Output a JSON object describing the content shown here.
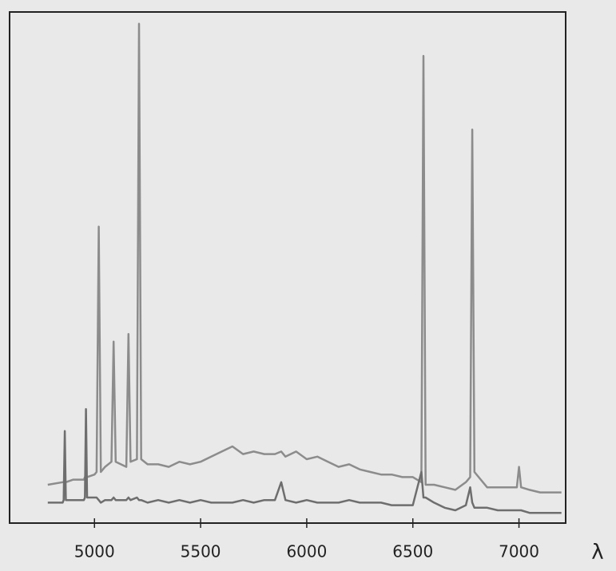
{
  "chart_data": {
    "type": "line",
    "x_label": "λ",
    "x": [
      4780,
      4850,
      4855,
      4860,
      4865,
      4900,
      4950,
      4955,
      4960,
      4965,
      5000,
      5010,
      5020,
      5030,
      5050,
      5080,
      5090,
      5100,
      5150,
      5160,
      5170,
      5200,
      5210,
      5220,
      5250,
      5300,
      5350,
      5400,
      5450,
      5500,
      5550,
      5600,
      5650,
      5700,
      5750,
      5800,
      5850,
      5880,
      5900,
      5950,
      6000,
      6050,
      6100,
      6150,
      6200,
      6250,
      6300,
      6350,
      6400,
      6450,
      6500,
      6540,
      6550,
      6560,
      6600,
      6650,
      6700,
      6750,
      6770,
      6780,
      6790,
      6850,
      6900,
      6950,
      6990,
      7000,
      7010,
      7050,
      7100,
      7150,
      7200
    ],
    "series": [
      {
        "color": "#8c8c8c",
        "values": [
          7.5,
          8,
          8,
          8,
          8,
          8.5,
          8.5,
          9,
          9,
          9,
          9.5,
          10,
          58,
          10,
          11,
          12,
          35.5,
          12,
          11,
          37,
          12,
          12.5,
          97.7,
          12.5,
          11.5,
          11.5,
          11,
          12,
          11.5,
          12,
          13,
          14,
          15,
          13.5,
          14,
          13.5,
          13.5,
          14,
          13,
          14,
          12.5,
          13,
          12,
          11,
          11.5,
          10.5,
          10,
          9.5,
          9.5,
          9,
          9,
          8,
          91.4,
          7.5,
          7.5,
          7,
          6.5,
          8,
          9,
          77,
          10,
          7,
          7,
          7,
          7,
          11,
          7,
          6.5,
          6,
          6,
          6
        ]
      },
      {
        "color": "#6e6e6e",
        "values": [
          4,
          4,
          4.5,
          18,
          4.5,
          4.5,
          4.5,
          5,
          22.3,
          5,
          5,
          5,
          4.5,
          4,
          4.5,
          4.5,
          5,
          4.5,
          4.5,
          5,
          4.5,
          5,
          4.5,
          4.5,
          4,
          4.5,
          4,
          4.5,
          4,
          4.5,
          4,
          4,
          4,
          4.5,
          4,
          4.5,
          4.5,
          8,
          4.5,
          4,
          4.5,
          4,
          4,
          4,
          4.5,
          4,
          4,
          4,
          3.5,
          3.5,
          3.5,
          10,
          5,
          5,
          4,
          3,
          2.5,
          3.5,
          7,
          4,
          3,
          3,
          2.5,
          2.5,
          2.5,
          2.5,
          2.5,
          2,
          2,
          2,
          2
        ]
      }
    ],
    "xlim": [
      4600,
      7220
    ],
    "xticks": [
      5000,
      5500,
      6000,
      6500,
      7000
    ],
    "ylim": [
      0,
      100
    ],
    "grid": false
  }
}
